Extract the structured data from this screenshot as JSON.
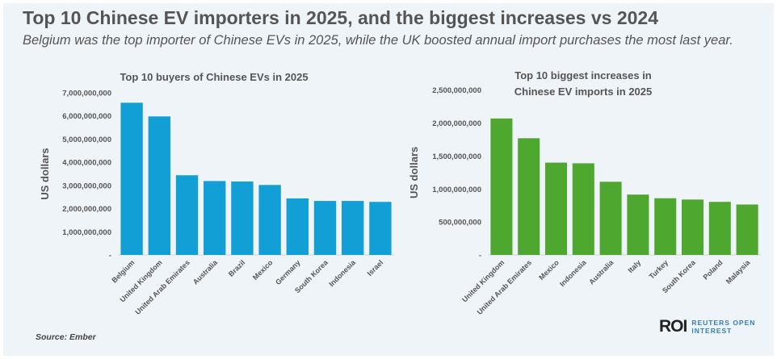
{
  "header": {
    "title": "Top 10 Chinese EV importers in 2025, and the biggest increases vs 2024",
    "subtitle": "Belgium was the top importer of Chinese EVs in 2025, while the UK boosted annual import purchases the most last year."
  },
  "footer": {
    "source": "Source:  Ember",
    "logo_mark": "ROI",
    "logo_text_1": "REUTERS OPEN",
    "logo_text_2": "INTEREST"
  },
  "chart_data": [
    {
      "type": "bar",
      "title": "Top 10 buyers of Chinese EVs in 2025",
      "ylabel": "US dollars",
      "ylim": [
        0,
        7000000000
      ],
      "yticks": [
        0,
        1000000000,
        2000000000,
        3000000000,
        4000000000,
        5000000000,
        6000000000,
        7000000000
      ],
      "ytick_labels": [
        "-",
        "1,000,000,000",
        "2,000,000,000",
        "3,000,000,000",
        "4,000,000,000",
        "5,000,000,000",
        "6,000,000,000",
        "7,000,000,000"
      ],
      "categories": [
        "Belgium",
        "United Kingdom",
        "United Arab Emirates",
        "Australia",
        "Brazil",
        "Mexico",
        "Germany",
        "South Korea",
        "Indonesia",
        "Israel"
      ],
      "values": [
        6570000000,
        5980000000,
        3440000000,
        3190000000,
        3170000000,
        3020000000,
        2440000000,
        2330000000,
        2330000000,
        2290000000
      ],
      "color": "#119fd6",
      "grid": false
    },
    {
      "type": "bar",
      "title": "Top 10 biggest increases in Chinese EV imports in 2025",
      "title_lines": [
        "Top 10 biggest increases in",
        "Chinese EV imports in 2025"
      ],
      "ylabel": "US dollars",
      "ylim": [
        0,
        2500000000
      ],
      "yticks": [
        0,
        500000000,
        1000000000,
        1500000000,
        2000000000,
        2500000000
      ],
      "ytick_labels": [
        "-",
        "500,000,000",
        "1,000,000,000",
        "1,500,000,000",
        "2,000,000,000",
        "2,500,000,000"
      ],
      "categories": [
        "United Kingdom",
        "United Arab Emirates",
        "Mexico",
        "Indonesia",
        "Australia",
        "Italy",
        "Turkey",
        "South Korea",
        "Poland",
        "Malaysia"
      ],
      "values": [
        2070000000,
        1770000000,
        1400000000,
        1390000000,
        1110000000,
        915000000,
        860000000,
        840000000,
        805000000,
        765000000
      ],
      "color": "#4ea72e",
      "grid": false
    }
  ]
}
